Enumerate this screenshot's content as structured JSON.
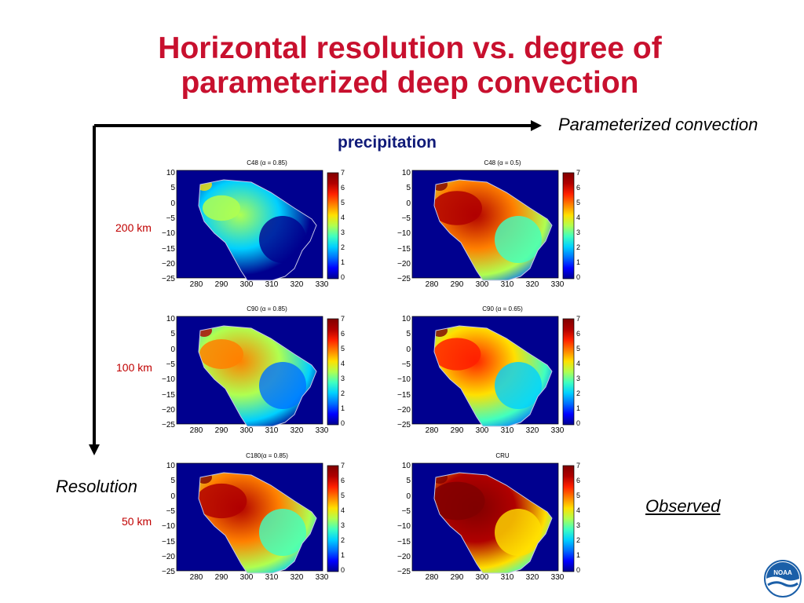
{
  "title_line1": "Horizontal resolution vs. degree of",
  "title_line2": "parameterized deep convection",
  "axis_labels": {
    "parameterized": "Parameterized convection",
    "resolution": "Resolution",
    "variable": "precipitation",
    "observed": "Observed"
  },
  "resolutions": [
    "200 km",
    "100 km",
    "50 km"
  ],
  "panels": [
    {
      "title": "C48 (α = 0.85)",
      "intensity": 0.3
    },
    {
      "title": "C48 (α = 0.5)",
      "intensity": 0.7
    },
    {
      "title": "C90 (α = 0.85)",
      "intensity": 0.5
    },
    {
      "title": "C90 (α = 0.65)",
      "intensity": 0.62
    },
    {
      "title": "C180(α = 0.85)",
      "intensity": 0.72
    },
    {
      "title": "CRU",
      "intensity": 0.88
    }
  ],
  "lat_ticks": [
    "10",
    "5",
    "0",
    "−5",
    "−10",
    "−15",
    "−20",
    "−25"
  ],
  "lon_ticks": [
    "280",
    "290",
    "300",
    "310",
    "320",
    "330"
  ],
  "colorbar_ticks": [
    "7",
    "6",
    "5",
    "4",
    "3",
    "2",
    "1",
    "0"
  ],
  "colors": {
    "title": "#c8102e",
    "variable_label": "#101a78",
    "resolution_label": "#c00000",
    "ocean": "#00008f"
  },
  "logo": {
    "text": "NOAA",
    "icon": "noaa-logo-icon"
  }
}
